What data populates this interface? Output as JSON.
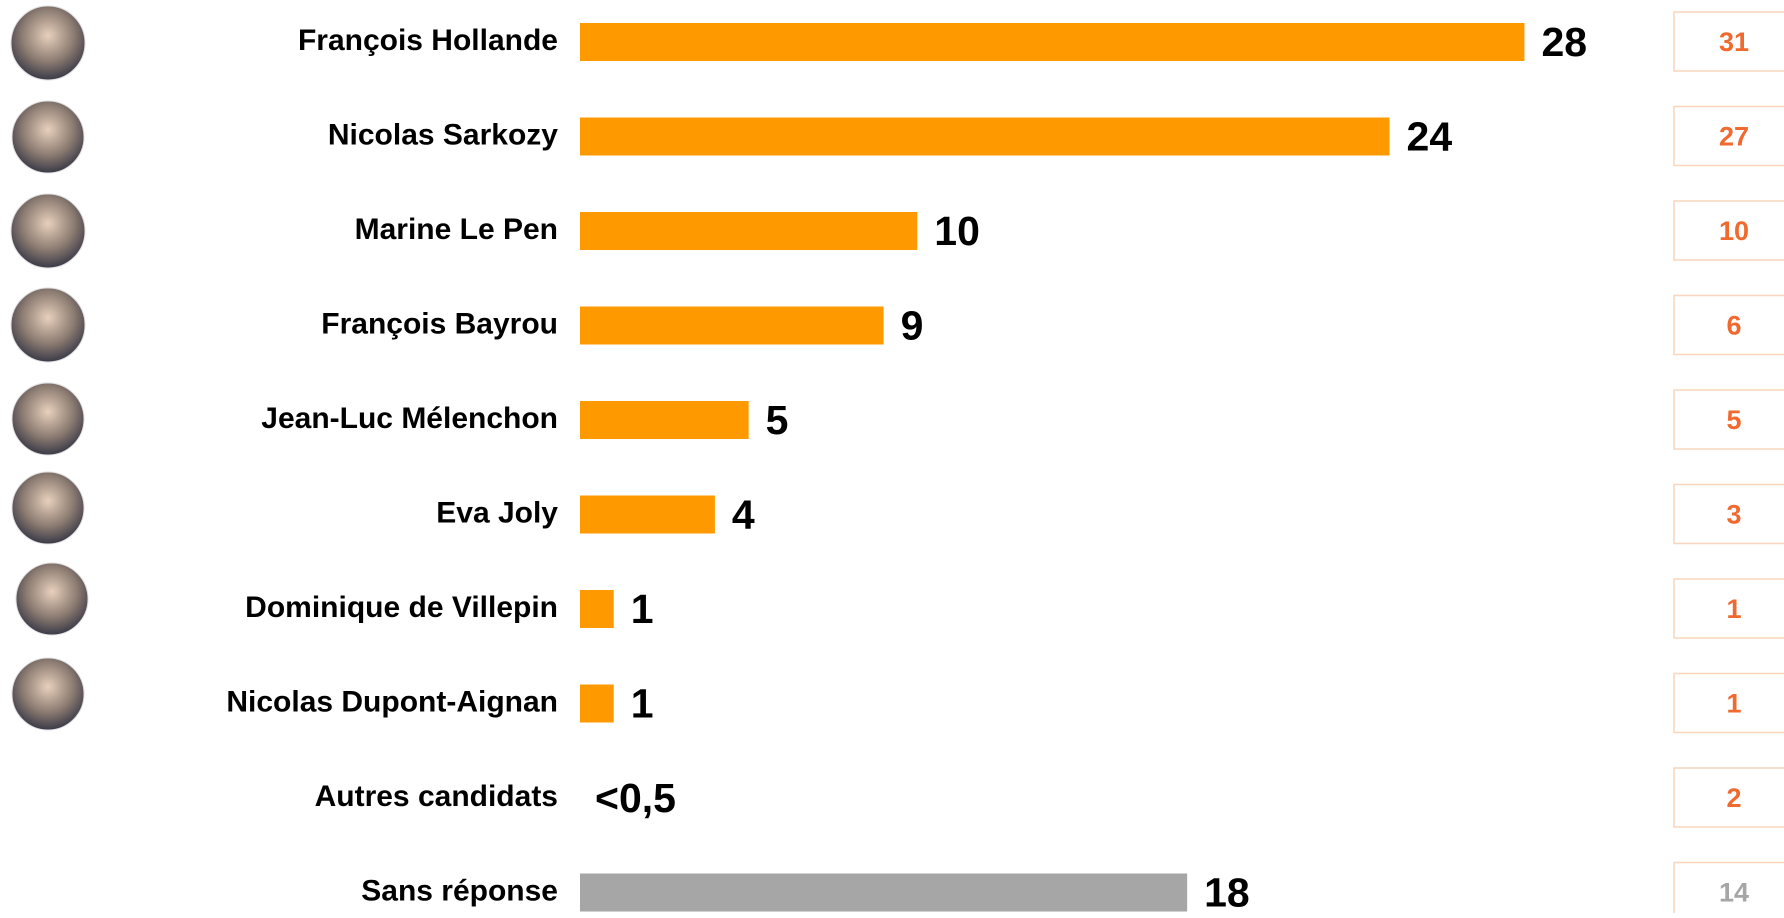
{
  "chart_data": {
    "type": "bar",
    "categories": [
      "François Hollande",
      "Nicolas Sarkozy",
      "Marine Le Pen",
      "François Bayrou",
      "Jean-Luc Mélenchon",
      "Eva Joly",
      "Dominique de Villepin",
      "Nicolas Dupont-Aignan",
      "Autres candidats",
      "Sans réponse"
    ],
    "values": [
      28,
      24,
      10,
      9,
      5,
      4,
      1,
      1,
      null,
      18
    ],
    "value_labels": [
      "28",
      "24",
      "10",
      "9",
      "5",
      "4",
      "1",
      "1",
      "<0,5",
      "18"
    ],
    "colors": [
      "#ff9900",
      "#ff9900",
      "#ff9900",
      "#ff9900",
      "#ff9900",
      "#ff9900",
      "#ff9900",
      "#ff9900",
      "#ff9900",
      "#a6a6a6"
    ],
    "reference_values": [
      31,
      27,
      10,
      6,
      5,
      3,
      1,
      1,
      2,
      14
    ],
    "reference_colors": [
      "#f06a30",
      "#f06a30",
      "#f06a30",
      "#f06a30",
      "#f06a30",
      "#f06a30",
      "#f06a30",
      "#f06a30",
      "#f06a30",
      "#a6a6a6"
    ]
  }
}
